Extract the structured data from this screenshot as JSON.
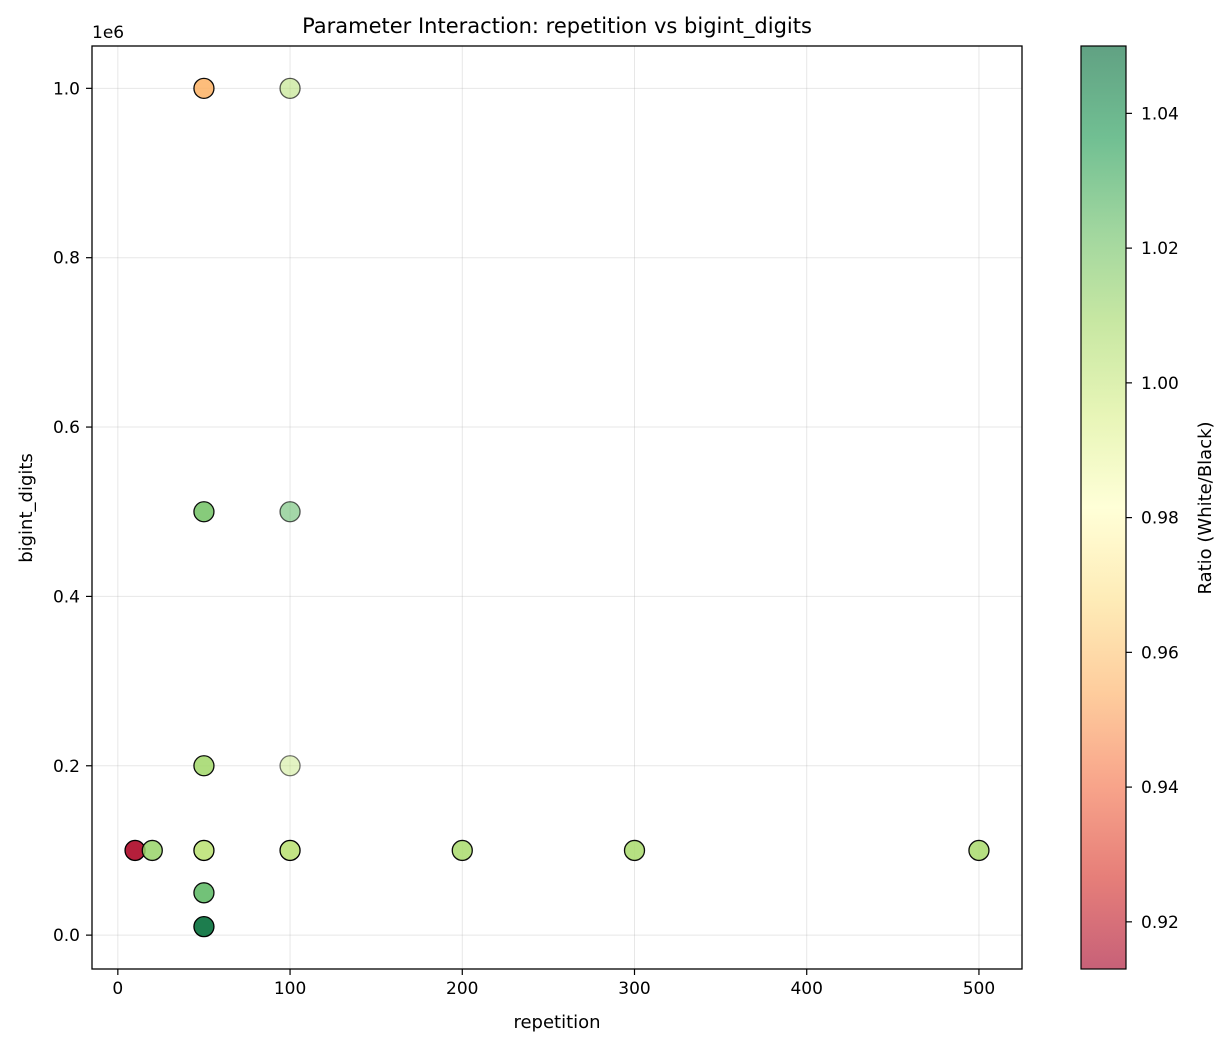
{
  "chart_data": {
    "type": "scatter",
    "title": "Parameter Interaction: repetition vs bigint_digits",
    "xlabel": "repetition",
    "ylabel": "bigint_digits",
    "y_offset_text": "1e6",
    "xlim": [
      -15,
      525
    ],
    "ylim": [
      -40000,
      1050000
    ],
    "x_ticks": [
      0,
      100,
      200,
      300,
      400,
      500
    ],
    "x_tick_labels": [
      "0",
      "100",
      "200",
      "300",
      "400",
      "500"
    ],
    "y_ticks": [
      0,
      200000,
      400000,
      600000,
      800000,
      1000000
    ],
    "y_tick_labels": [
      "0.0",
      "0.2",
      "0.4",
      "0.6",
      "0.8",
      "1.0"
    ],
    "grid": true,
    "colorbar": {
      "label": "Ratio (White/Black)",
      "colormap": "RdYlGn",
      "range": [
        0.913,
        1.05
      ],
      "ticks": [
        0.92,
        0.94,
        0.96,
        0.98,
        1.0,
        1.02,
        1.04
      ],
      "tick_labels": [
        "0.92",
        "0.94",
        "0.96",
        "0.98",
        "1.00",
        "1.02",
        "1.04"
      ]
    },
    "points": [
      {
        "x": 50,
        "y": 1000000,
        "ratio": 0.955,
        "opacity": 0.85
      },
      {
        "x": 100,
        "y": 1000000,
        "ratio": 1.005,
        "opacity": 0.55
      },
      {
        "x": 50,
        "y": 500000,
        "ratio": 1.02,
        "opacity": 0.85
      },
      {
        "x": 100,
        "y": 500000,
        "ratio": 1.025,
        "opacity": 0.55
      },
      {
        "x": 50,
        "y": 200000,
        "ratio": 1.01,
        "opacity": 0.85
      },
      {
        "x": 100,
        "y": 200000,
        "ratio": 1.002,
        "opacity": 0.45
      },
      {
        "x": 10,
        "y": 100000,
        "ratio": 0.915,
        "opacity": 0.9
      },
      {
        "x": 20,
        "y": 100000,
        "ratio": 1.012,
        "opacity": 0.85
      },
      {
        "x": 50,
        "y": 100000,
        "ratio": 1.003,
        "opacity": 0.9
      },
      {
        "x": 100,
        "y": 100000,
        "ratio": 1.003,
        "opacity": 0.9
      },
      {
        "x": 200,
        "y": 100000,
        "ratio": 1.008,
        "opacity": 0.85
      },
      {
        "x": 300,
        "y": 100000,
        "ratio": 1.008,
        "opacity": 0.85
      },
      {
        "x": 500,
        "y": 100000,
        "ratio": 1.008,
        "opacity": 0.85
      },
      {
        "x": 50,
        "y": 50000,
        "ratio": 1.025,
        "opacity": 0.85
      },
      {
        "x": 50,
        "y": 10000,
        "ratio": 1.048,
        "opacity": 0.9
      }
    ]
  }
}
